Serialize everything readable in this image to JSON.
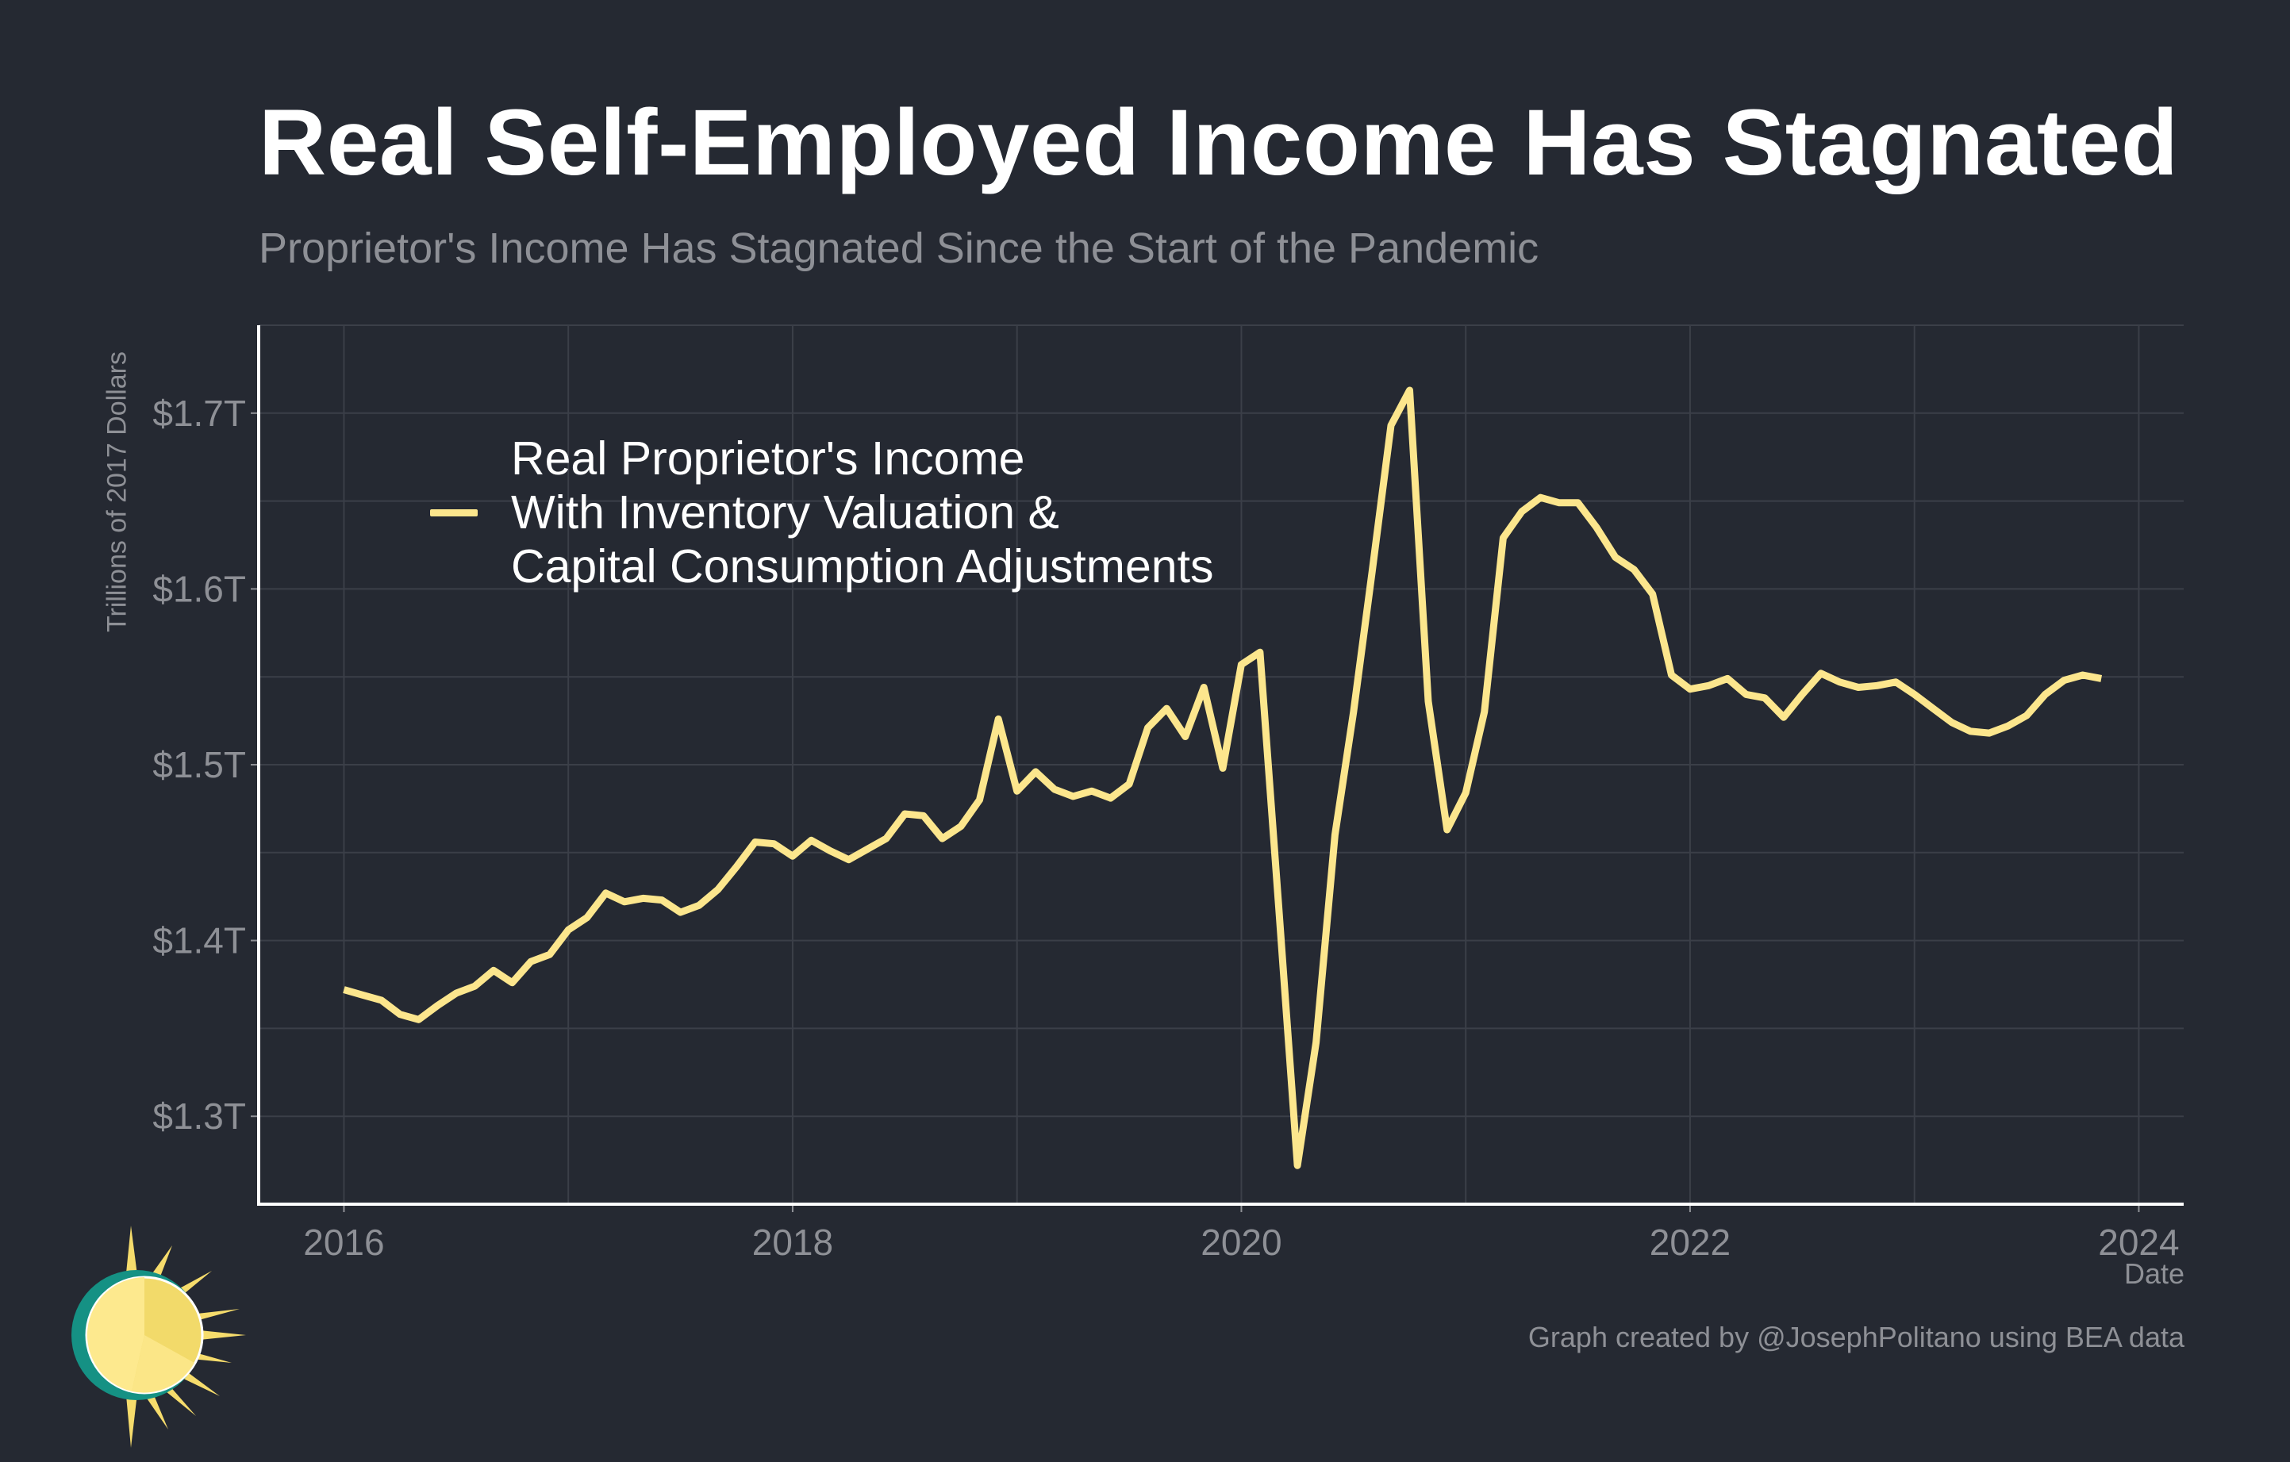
{
  "title": "Real Self-Employed Income Has Stagnated",
  "subtitle": "Proprietor's Income Has Stagnated Since the Start of the Pandemic",
  "caption": "Graph created by @JosephPolitano using BEA data",
  "colors": {
    "background": "#252932",
    "line": "#fce68d",
    "grid": "#3b3f48",
    "axis": "#ffffff",
    "muted": "#8e9096"
  },
  "chart_data": {
    "type": "line",
    "xlabel": "Date",
    "ylabel": "Trillions of 2017 Dollars",
    "xlim": [
      2015.62,
      2024.2
    ],
    "ylim": [
      1.25,
      1.75
    ],
    "x_ticks": [
      2016,
      2018,
      2020,
      2022,
      2024
    ],
    "x_tick_labels": [
      "2016",
      "2018",
      "2020",
      "2022",
      "2024"
    ],
    "y_ticks": [
      1.3,
      1.4,
      1.5,
      1.6,
      1.7
    ],
    "y_tick_labels": [
      "$1.3T",
      "$1.4T",
      "$1.5T",
      "$1.6T",
      "$1.7T"
    ],
    "grid": true,
    "legend_position": "top-left",
    "series": [
      {
        "name": "Real Proprietor's Income\nWith Inventory Valuation &\nCapital Consumption Adjustments",
        "x": [
          2016.0,
          2016.083,
          2016.167,
          2016.25,
          2016.333,
          2016.417,
          2016.5,
          2016.583,
          2016.667,
          2016.75,
          2016.833,
          2016.917,
          2017.0,
          2017.083,
          2017.167,
          2017.25,
          2017.333,
          2017.417,
          2017.5,
          2017.583,
          2017.667,
          2017.75,
          2017.833,
          2017.917,
          2018.0,
          2018.083,
          2018.167,
          2018.25,
          2018.333,
          2018.417,
          2018.5,
          2018.583,
          2018.667,
          2018.75,
          2018.833,
          2018.917,
          2019.0,
          2019.083,
          2019.167,
          2019.25,
          2019.333,
          2019.417,
          2019.5,
          2019.583,
          2019.667,
          2019.75,
          2019.833,
          2019.917,
          2020.0,
          2020.083,
          2020.167,
          2020.25,
          2020.333,
          2020.417,
          2020.5,
          2020.583,
          2020.667,
          2020.75,
          2020.833,
          2020.917,
          2021.0,
          2021.083,
          2021.167,
          2021.25,
          2021.333,
          2021.417,
          2021.5,
          2021.583,
          2021.667,
          2021.75,
          2021.833,
          2021.917,
          2022.0,
          2022.083,
          2022.167,
          2022.25,
          2022.333,
          2022.417,
          2022.5,
          2022.583,
          2022.667,
          2022.75,
          2022.833,
          2022.917,
          2023.0,
          2023.083,
          2023.167,
          2023.25,
          2023.333,
          2023.417,
          2023.5,
          2023.583,
          2023.667,
          2023.75,
          2023.833
        ],
        "values": [
          1.372,
          1.369,
          1.366,
          1.358,
          1.355,
          1.363,
          1.37,
          1.374,
          1.383,
          1.376,
          1.388,
          1.392,
          1.406,
          1.413,
          1.427,
          1.422,
          1.424,
          1.423,
          1.416,
          1.42,
          1.429,
          1.442,
          1.456,
          1.455,
          1.448,
          1.457,
          1.451,
          1.446,
          1.452,
          1.458,
          1.472,
          1.471,
          1.458,
          1.465,
          1.48,
          1.526,
          1.485,
          1.496,
          1.486,
          1.482,
          1.485,
          1.481,
          1.489,
          1.521,
          1.532,
          1.516,
          1.544,
          1.498,
          1.557,
          1.564,
          1.418,
          1.272,
          1.342,
          1.46,
          1.53,
          1.61,
          1.693,
          1.713,
          1.536,
          1.463,
          1.484,
          1.53,
          1.629,
          1.644,
          1.652,
          1.649,
          1.649,
          1.635,
          1.618,
          1.611,
          1.597,
          1.551,
          1.543,
          1.545,
          1.549,
          1.54,
          1.538,
          1.527,
          1.54,
          1.552,
          1.547,
          1.544,
          1.545,
          1.547,
          1.54,
          1.532,
          1.524,
          1.519,
          1.518,
          1.522,
          1.528,
          1.54,
          1.548,
          1.551,
          1.549
        ]
      }
    ]
  }
}
